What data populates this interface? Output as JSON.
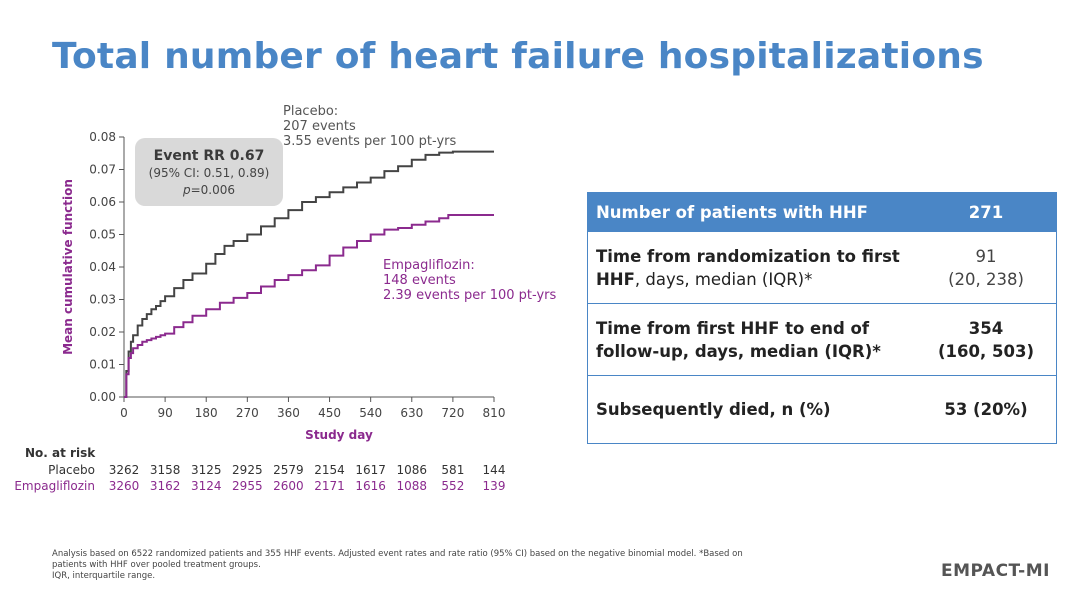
{
  "slide": {
    "title": "Total number of heart failure hospitalizations",
    "brand": "EMPACT-MI",
    "footnote_lines": [
      "Analysis based on 6522 randomized patients and 355 HHF events. Adjusted event rates and rate ratio (95% CI) based on the negative binomial model. *Based on",
      "patients with HHF over pooled treatment groups.",
      "IQR, interquartile range."
    ]
  },
  "colors": {
    "title": "#4a86c6",
    "placebo": "#444444",
    "empagliflozin": "#8b2a8e",
    "table_border": "#4a86c6",
    "rr_box": "#d9d9d9"
  },
  "chart_data": {
    "type": "line",
    "title": "",
    "xlabel": "Study day",
    "ylabel": "Mean cumulative function",
    "xlim": [
      0,
      810
    ],
    "ylim": [
      0,
      0.08
    ],
    "xticks": [
      0,
      90,
      180,
      270,
      360,
      450,
      540,
      630,
      720,
      810
    ],
    "xtick_labels": [
      "0",
      "90",
      "180",
      "270",
      "360",
      "450",
      "540",
      "630",
      "720",
      "810"
    ],
    "yticks": [
      0,
      0.01,
      0.02,
      0.03,
      0.04,
      0.05,
      0.06,
      0.07,
      0.08
    ],
    "ytick_labels": [
      "0.00",
      "0.01",
      "0.02",
      "0.03",
      "0.04",
      "0.05",
      "0.06",
      "0.07",
      "0.08"
    ],
    "grid": false,
    "series": [
      {
        "name": "Placebo",
        "color": "#444444",
        "x": [
          0,
          5,
          10,
          15,
          20,
          30,
          40,
          50,
          60,
          70,
          80,
          90,
          110,
          130,
          150,
          180,
          200,
          220,
          240,
          270,
          300,
          330,
          360,
          390,
          420,
          450,
          480,
          510,
          540,
          570,
          600,
          630,
          660,
          690,
          720,
          760,
          810
        ],
        "y": [
          0,
          0.008,
          0.014,
          0.017,
          0.019,
          0.022,
          0.024,
          0.0255,
          0.027,
          0.028,
          0.0295,
          0.031,
          0.0335,
          0.036,
          0.038,
          0.041,
          0.044,
          0.0465,
          0.048,
          0.05,
          0.0525,
          0.055,
          0.0575,
          0.06,
          0.0615,
          0.063,
          0.0645,
          0.066,
          0.0675,
          0.0695,
          0.071,
          0.073,
          0.0745,
          0.0752,
          0.0755,
          0.0755,
          0.0755
        ]
      },
      {
        "name": "Empagliflozin",
        "color": "#8b2a8e",
        "x": [
          0,
          5,
          10,
          15,
          20,
          30,
          40,
          50,
          60,
          70,
          80,
          90,
          110,
          130,
          150,
          180,
          210,
          240,
          270,
          300,
          330,
          360,
          390,
          420,
          450,
          480,
          510,
          540,
          570,
          600,
          630,
          660,
          690,
          710,
          740,
          810
        ],
        "y": [
          0,
          0.007,
          0.012,
          0.0135,
          0.015,
          0.016,
          0.017,
          0.0175,
          0.018,
          0.0185,
          0.019,
          0.0195,
          0.0215,
          0.023,
          0.025,
          0.027,
          0.029,
          0.0305,
          0.032,
          0.034,
          0.036,
          0.0375,
          0.039,
          0.0405,
          0.0435,
          0.046,
          0.048,
          0.05,
          0.0515,
          0.052,
          0.053,
          0.054,
          0.055,
          0.056,
          0.056,
          0.056
        ]
      }
    ],
    "annotations": {
      "placebo": [
        "Placebo:",
        "207 events",
        "3.55 events per 100 pt-yrs"
      ],
      "empagliflozin": [
        "Empagliflozin:",
        "148 events",
        "2.39 events per 100 pt-yrs"
      ],
      "rate_ratio": {
        "title": "Event RR 0.67",
        "ci": "(95% CI: 0.51, 0.89)",
        "p_label": "p",
        "p_value": "=0.006"
      }
    },
    "risk_table": {
      "header": "No. at risk",
      "rows": [
        {
          "label": "Placebo",
          "values": [
            "3262",
            "3158",
            "3125",
            "2925",
            "2579",
            "2154",
            "1617",
            "1086",
            "581",
            "144"
          ]
        },
        {
          "label": "Empagliflozin",
          "values": [
            "3260",
            "3162",
            "3124",
            "2955",
            "2600",
            "2171",
            "1616",
            "1088",
            "552",
            "139"
          ]
        }
      ]
    }
  },
  "stats_table": {
    "header": {
      "label": "Number of patients with HHF",
      "value": "271"
    },
    "rows": [
      {
        "label_bold": "Time from randomization to first HHF",
        "label_rest": ", days, median (IQR)*",
        "value_line1": "91",
        "value_line2": "(20, 238)"
      },
      {
        "label_bold": "Time from first HHF to end of follow-up, days, median (IQR)*",
        "label_rest": "",
        "value_line1": "354",
        "value_line2": "(160, 503)"
      },
      {
        "label_bold": "Subsequently died, n (%)",
        "label_rest": "",
        "value_line1": "53 (20%)",
        "value_line2": ""
      }
    ]
  }
}
